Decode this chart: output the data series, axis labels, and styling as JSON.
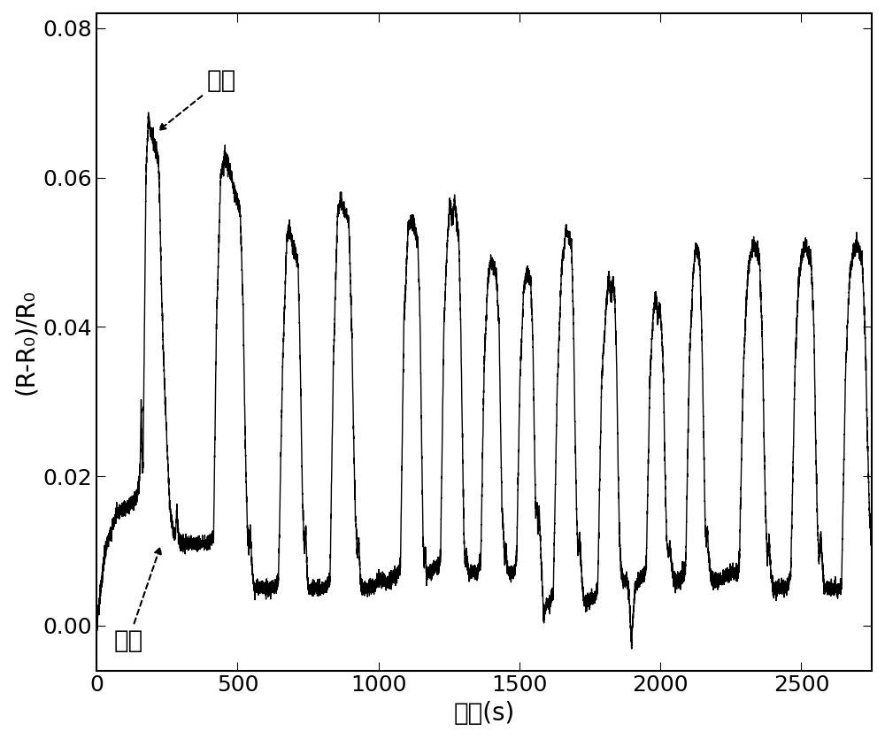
{
  "xlabel": "时间(s)",
  "ylabel": "(R-R₀)/R₀",
  "xlim": [
    0,
    2750
  ],
  "ylim": [
    -0.006,
    0.082
  ],
  "yticks": [
    0.0,
    0.02,
    0.04,
    0.06,
    0.08
  ],
  "xticks": [
    0,
    500,
    1000,
    1500,
    2000,
    2500
  ],
  "line_color": "#000000",
  "background_color": "#ffffff",
  "annotation_chloroform_text": "氯仿",
  "annotation_air_text": "空气",
  "figsize": [
    10.0,
    8.35
  ],
  "dpi": 100,
  "font_size": 20,
  "tick_font_size": 18
}
